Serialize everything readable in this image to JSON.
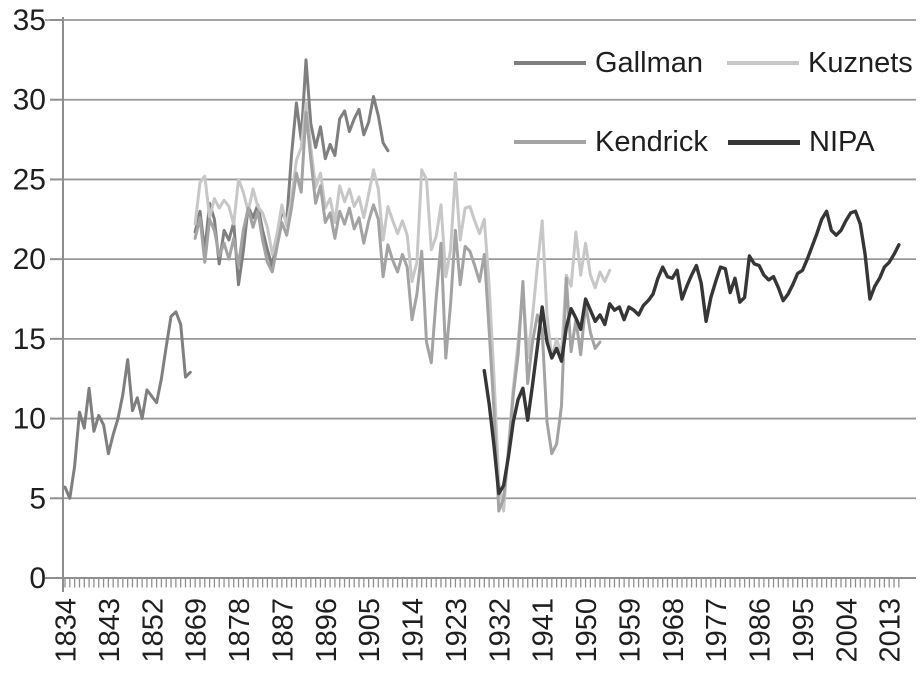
{
  "legend": {
    "items": [
      {
        "label": "Gallman"
      },
      {
        "label": "Kuznets"
      },
      {
        "label": "Kendrick"
      },
      {
        "label": "NIPA"
      }
    ]
  },
  "chart_data": {
    "type": "line",
    "title": "",
    "xlabel": "",
    "ylabel": "",
    "ylim": [
      0,
      35
    ],
    "yticks": [
      0,
      5,
      10,
      15,
      20,
      25,
      30,
      35
    ],
    "grid": true,
    "legend_position": "top-right-inside",
    "style": {
      "grid_color": "#989898",
      "axis_color": "#8f8f8f",
      "text_color": "#1f1f1f",
      "background": "#ffffff"
    },
    "x_axis": {
      "unit": "year",
      "first_year": 1834,
      "last_year": 2015,
      "gap_after": 1860,
      "resume_at": 1869,
      "label_years": [
        1834,
        1843,
        1852,
        1869,
        1878,
        1887,
        1896,
        1905,
        1914,
        1923,
        1932,
        1941,
        1950,
        1959,
        1968,
        1977,
        1986,
        1995,
        2004,
        2013
      ]
    },
    "series": [
      {
        "name": "Gallman",
        "color": "#7f7f7f",
        "width": 3,
        "segments": [
          {
            "start_year": 1834,
            "values": [
              5.7,
              5.0,
              7.0,
              10.4,
              9.4,
              11.9,
              9.2,
              10.2,
              9.6,
              7.8,
              9.0,
              10.0,
              11.5,
              13.7,
              10.5,
              11.3,
              10.0,
              11.8,
              11.4,
              11.0,
              12.5,
              14.5,
              16.4,
              16.7,
              15.9,
              12.6,
              12.9
            ]
          },
          {
            "start_year": 1869,
            "values": [
              21.7,
              23.0,
              20.5,
              23.5,
              22.5,
              19.7,
              21.8,
              21.2,
              22.3,
              18.4,
              20.5,
              23.3,
              22.6,
              23.4,
              21.8,
              20.6,
              19.5,
              21.5,
              23.0,
              22.4,
              26.5,
              29.8,
              27.5,
              32.5,
              28.5,
              27.0,
              28.3,
              26.3,
              27.2,
              26.5,
              28.8,
              29.3,
              28.0,
              28.8,
              29.4,
              27.8,
              28.6,
              30.2,
              29.0,
              27.3,
              26.8
            ]
          }
        ]
      },
      {
        "name": "Kuznets",
        "color": "#c7c7c7",
        "width": 3,
        "segments": [
          {
            "start_year": 1869,
            "values": [
              22.2,
              24.8,
              25.2,
              22.6,
              23.8,
              23.2,
              23.7,
              23.3,
              22.2,
              25.0,
              24.2,
              23.0,
              24.4,
              23.3,
              22.9,
              22.0,
              20.3,
              21.6,
              23.4,
              22.1,
              23.8,
              26.2,
              27.0,
              29.8,
              27.0,
              24.5,
              25.4,
              23.2,
              23.8,
              22.3,
              24.6,
              23.6,
              24.4,
              23.3,
              23.9,
              22.6,
              24.1,
              25.6,
              24.4,
              21.2,
              23.3,
              22.4,
              21.6,
              22.4,
              21.5,
              18.6,
              19.8,
              25.6,
              25.0,
              20.6,
              21.4,
              23.4,
              18.9,
              20.6,
              25.4,
              21.2,
              23.2,
              23.3,
              22.4,
              21.6,
              22.5,
              18.3,
              12.6,
              6.0,
              4.2,
              8.2,
              11.9,
              14.8,
              18.2,
              13.8,
              16.4,
              19.6,
              22.4,
              16.5,
              13.8,
              15.0,
              14.0,
              19.0,
              18.3,
              21.7,
              19.0,
              21.0,
              19.0,
              18.2,
              19.2,
              18.6,
              19.3
            ]
          }
        ]
      },
      {
        "name": "Kendrick",
        "color": "#a3a3a3",
        "width": 3,
        "segments": [
          {
            "start_year": 1869,
            "values": [
              21.3,
              22.6,
              19.8,
              22.5,
              21.8,
              20.2,
              21.0,
              20.0,
              21.3,
              19.6,
              21.8,
              23.2,
              22.0,
              23.0,
              21.2,
              19.8,
              19.2,
              20.8,
              22.3,
              21.5,
              23.2,
              25.4,
              24.2,
              29.2,
              26.3,
              23.5,
              24.6,
              22.3,
              22.9,
              21.3,
              23.0,
              22.2,
              23.2,
              21.9,
              22.6,
              21.0,
              22.4,
              23.4,
              22.5,
              18.9,
              20.9,
              19.9,
              19.2,
              20.3,
              19.5,
              16.2,
              17.8,
              20.5,
              14.8,
              13.5,
              17.5,
              21.0,
              13.8,
              17.2,
              21.8,
              18.4,
              20.8,
              20.5,
              19.6,
              18.6,
              20.3,
              15.5,
              10.5,
              4.2,
              5.0,
              7.8,
              11.5,
              14.0,
              18.6,
              12.2,
              14.8,
              16.5,
              15.5,
              9.8,
              7.8,
              8.4,
              10.8,
              18.8,
              14.2,
              16.2,
              14.0,
              17.2,
              15.4,
              14.4,
              14.8
            ]
          }
        ]
      },
      {
        "name": "NIPA",
        "color": "#363636",
        "width": 3.4,
        "segments": [
          {
            "start_year": 1929,
            "values": [
              13.0,
              10.9,
              8.3,
              5.3,
              5.8,
              7.6,
              9.8,
              11.2,
              11.9,
              9.9,
              12.1,
              14.5,
              17.0,
              14.8,
              13.8,
              14.4,
              13.6,
              15.7,
              16.9,
              16.3,
              15.6,
              17.5,
              16.8,
              16.1,
              16.5,
              15.9,
              17.2,
              16.8,
              17.0,
              16.2,
              17.0,
              16.8,
              16.5,
              17.1,
              17.4,
              17.8,
              18.8,
              19.5,
              18.9,
              18.8,
              19.3,
              17.5,
              18.3,
              19.0,
              19.6,
              18.5,
              16.1,
              17.6,
              18.6,
              19.5,
              19.4,
              17.9,
              18.8,
              17.3,
              17.6,
              20.2,
              19.7,
              19.6,
              19.0,
              18.7,
              18.9,
              18.2,
              17.4,
              17.8,
              18.4,
              19.1,
              19.3,
              20.0,
              20.8,
              21.6,
              22.5,
              23.0,
              21.8,
              21.5,
              21.8,
              22.4,
              22.9,
              23.0,
              22.2,
              20.3,
              17.5,
              18.3,
              18.8,
              19.5,
              19.8,
              20.3,
              20.9
            ]
          }
        ]
      }
    ]
  }
}
